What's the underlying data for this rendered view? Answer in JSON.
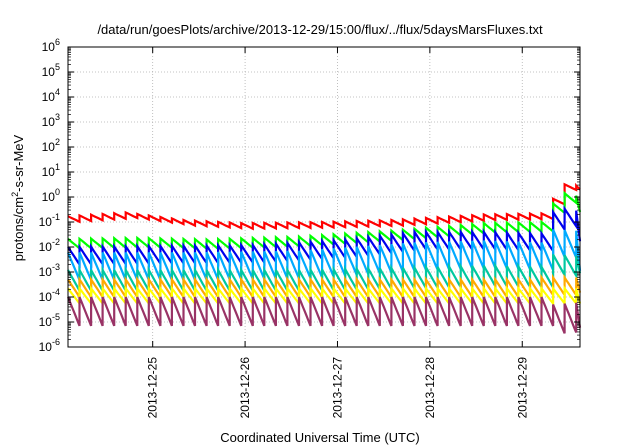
{
  "chart_data": {
    "type": "line",
    "title": "/data/run/goesPlots/archive/2013-12-29/15:00/flux/../flux/5daysMarsFluxes.txt",
    "xlabel": "Coordinated Universal Time (UTC)",
    "ylabel": {
      "prefix": "protons/cm",
      "sup": "2",
      "suffix": "-s-sr-MeV"
    },
    "xlim": [
      "2013-12-24 02:00",
      "2013-12-29 15:00"
    ],
    "x_ticks": [
      "2013-12-25",
      "2013-12-26",
      "2013-12-27",
      "2013-12-28",
      "2013-12-29"
    ],
    "y_scale": "log",
    "ylim": [
      1e-06,
      1000000.0
    ],
    "y_ticks": [
      {
        "base": "10",
        "exp": "-6"
      },
      {
        "base": "10",
        "exp": "-5"
      },
      {
        "base": "10",
        "exp": "-4"
      },
      {
        "base": "10",
        "exp": "-3"
      },
      {
        "base": "10",
        "exp": "-2"
      },
      {
        "base": "10",
        "exp": "-1"
      },
      {
        "base": "10",
        "exp": "0"
      },
      {
        "base": "10",
        "exp": "1"
      },
      {
        "base": "10",
        "exp": "2"
      },
      {
        "base": "10",
        "exp": "3"
      },
      {
        "base": "10",
        "exp": "4"
      },
      {
        "base": "10",
        "exp": "5"
      },
      {
        "base": "10",
        "exp": "6"
      }
    ],
    "grid": true,
    "legend": "none",
    "sawtooth_period_hours": 3,
    "series": [
      {
        "color": "#ff0000",
        "peaks": [
          [
            0,
            0.17
          ],
          [
            5,
            0.24
          ],
          [
            10,
            0.12
          ],
          [
            15,
            0.09
          ],
          [
            22,
            0.1
          ],
          [
            28,
            0.12
          ],
          [
            36,
            0.2
          ],
          [
            41,
            0.22
          ],
          [
            42,
            0.85
          ],
          [
            43,
            3.2
          ],
          [
            46,
            2.2
          ]
        ],
        "drop": 0.6,
        "low_tail": 0.7
      },
      {
        "color": "#00ff00",
        "peaks": [
          [
            0,
            0.021
          ],
          [
            6,
            0.023
          ],
          [
            12,
            0.02
          ],
          [
            20,
            0.026
          ],
          [
            28,
            0.045
          ],
          [
            36,
            0.09
          ],
          [
            41,
            0.1
          ],
          [
            42,
            0.55
          ],
          [
            43,
            1.4
          ],
          [
            46,
            0.75
          ]
        ],
        "drop": 0.42,
        "low_tail": 0.22
      },
      {
        "color": "#0000ee",
        "peaks": [
          [
            0,
            0.01
          ],
          [
            8,
            0.011
          ],
          [
            16,
            0.012
          ],
          [
            24,
            0.02
          ],
          [
            30,
            0.04
          ],
          [
            36,
            0.04
          ],
          [
            41,
            0.035
          ],
          [
            42,
            0.25
          ],
          [
            43,
            0.34
          ],
          [
            46,
            0.2
          ]
        ],
        "drop": 0.2,
        "low_tail": 0.06
      },
      {
        "color": "#00aaff",
        "peaks": [
          [
            0,
            0.006
          ],
          [
            10,
            0.006
          ],
          [
            20,
            0.007
          ],
          [
            30,
            0.015
          ],
          [
            36,
            0.018
          ],
          [
            41,
            0.015
          ],
          [
            42,
            0.05
          ],
          [
            46,
            0.04
          ]
        ],
        "drop": 0.08,
        "low_tail": 0.025
      },
      {
        "color": "#00c8a0",
        "peaks": [
          [
            0,
            0.0012
          ],
          [
            20,
            0.0012
          ],
          [
            30,
            0.0015
          ],
          [
            36,
            0.0018
          ],
          [
            41,
            0.0016
          ],
          [
            42,
            0.005
          ],
          [
            46,
            0.004
          ]
        ],
        "drop": 0.15,
        "low_tail": 0.2
      },
      {
        "color": "#ffaa00",
        "peaks": [
          [
            0,
            0.0005
          ],
          [
            40,
            0.0005
          ],
          [
            41,
            0.0006
          ],
          [
            46,
            0.0006
          ]
        ],
        "drop": 0.2,
        "low_tail": 0.25
      },
      {
        "color": "#ffff00",
        "peaks": [
          [
            0,
            0.00022
          ],
          [
            46,
            0.00022
          ]
        ],
        "drop": 0.25,
        "low_tail": 0.25
      },
      {
        "color": "#993366",
        "peaks": [
          [
            0,
            0.0001
          ],
          [
            41,
            0.0001
          ],
          [
            42,
            5e-05
          ],
          [
            46,
            7e-05
          ]
        ],
        "drop": 0.07,
        "low_tail": 0.1
      }
    ]
  }
}
